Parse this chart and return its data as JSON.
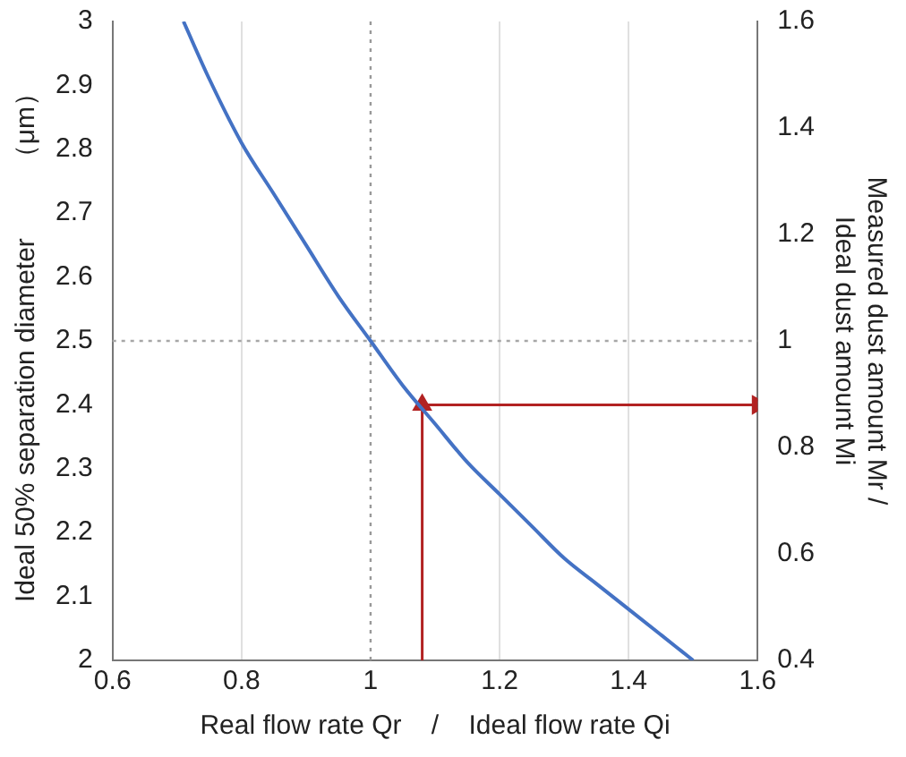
{
  "chart_data": {
    "type": "line",
    "xlabel": "Real flow rate Qr    /    Ideal flow rate Qi",
    "ylabel": "Ideal 50% separation diameter         （μm）",
    "y2label": "Measured dust amount Mr /\nIdeal dust amount Mi",
    "xlim": [
      0.6,
      1.6
    ],
    "xticks": [
      0.6,
      0.8,
      1,
      1.2,
      1.4,
      1.6
    ],
    "ylim": [
      2,
      3
    ],
    "yticks": [
      2,
      2.1,
      2.2,
      2.3,
      2.4,
      2.5,
      2.6,
      2.7,
      2.8,
      2.9,
      3
    ],
    "y2lim": [
      0.4,
      1.6
    ],
    "y2ticks": [
      0.4,
      0.6,
      0.8,
      1,
      1.2,
      1.4,
      1.6
    ],
    "grid": "x",
    "legend": false,
    "marker": "none",
    "line_style": "solid",
    "series": [
      {
        "color": "#4472c4",
        "x": [
          0.71,
          0.75,
          0.8,
          0.85,
          0.9,
          0.95,
          1,
          1.05,
          1.1,
          1.15,
          1.2,
          1.25,
          1.3,
          1.35,
          1.4,
          1.45,
          1.5
        ],
        "values": [
          3,
          2.91,
          2.81,
          2.73,
          2.65,
          2.57,
          2.5,
          2.43,
          2.37,
          2.31,
          2.26,
          2.21,
          2.16,
          2.12,
          2.08,
          2.04,
          2
        ]
      },
      {
        "color": "#b22222",
        "marker": "triangle",
        "x": [
          1.08,
          1.08
        ],
        "values": [
          2,
          2.4
        ]
      },
      {
        "color": "#b22222",
        "marker": "triangle",
        "x": [
          1.08,
          1.6
        ],
        "values": [
          2.4,
          2.4
        ]
      }
    ],
    "ref_lines": [
      {
        "axis": "x",
        "value": 1,
        "color": "#999999",
        "line_style": "dotted"
      },
      {
        "axis": "y",
        "value": 2.5,
        "color": "#a6a6a6",
        "line_style": "dotted"
      }
    ]
  }
}
